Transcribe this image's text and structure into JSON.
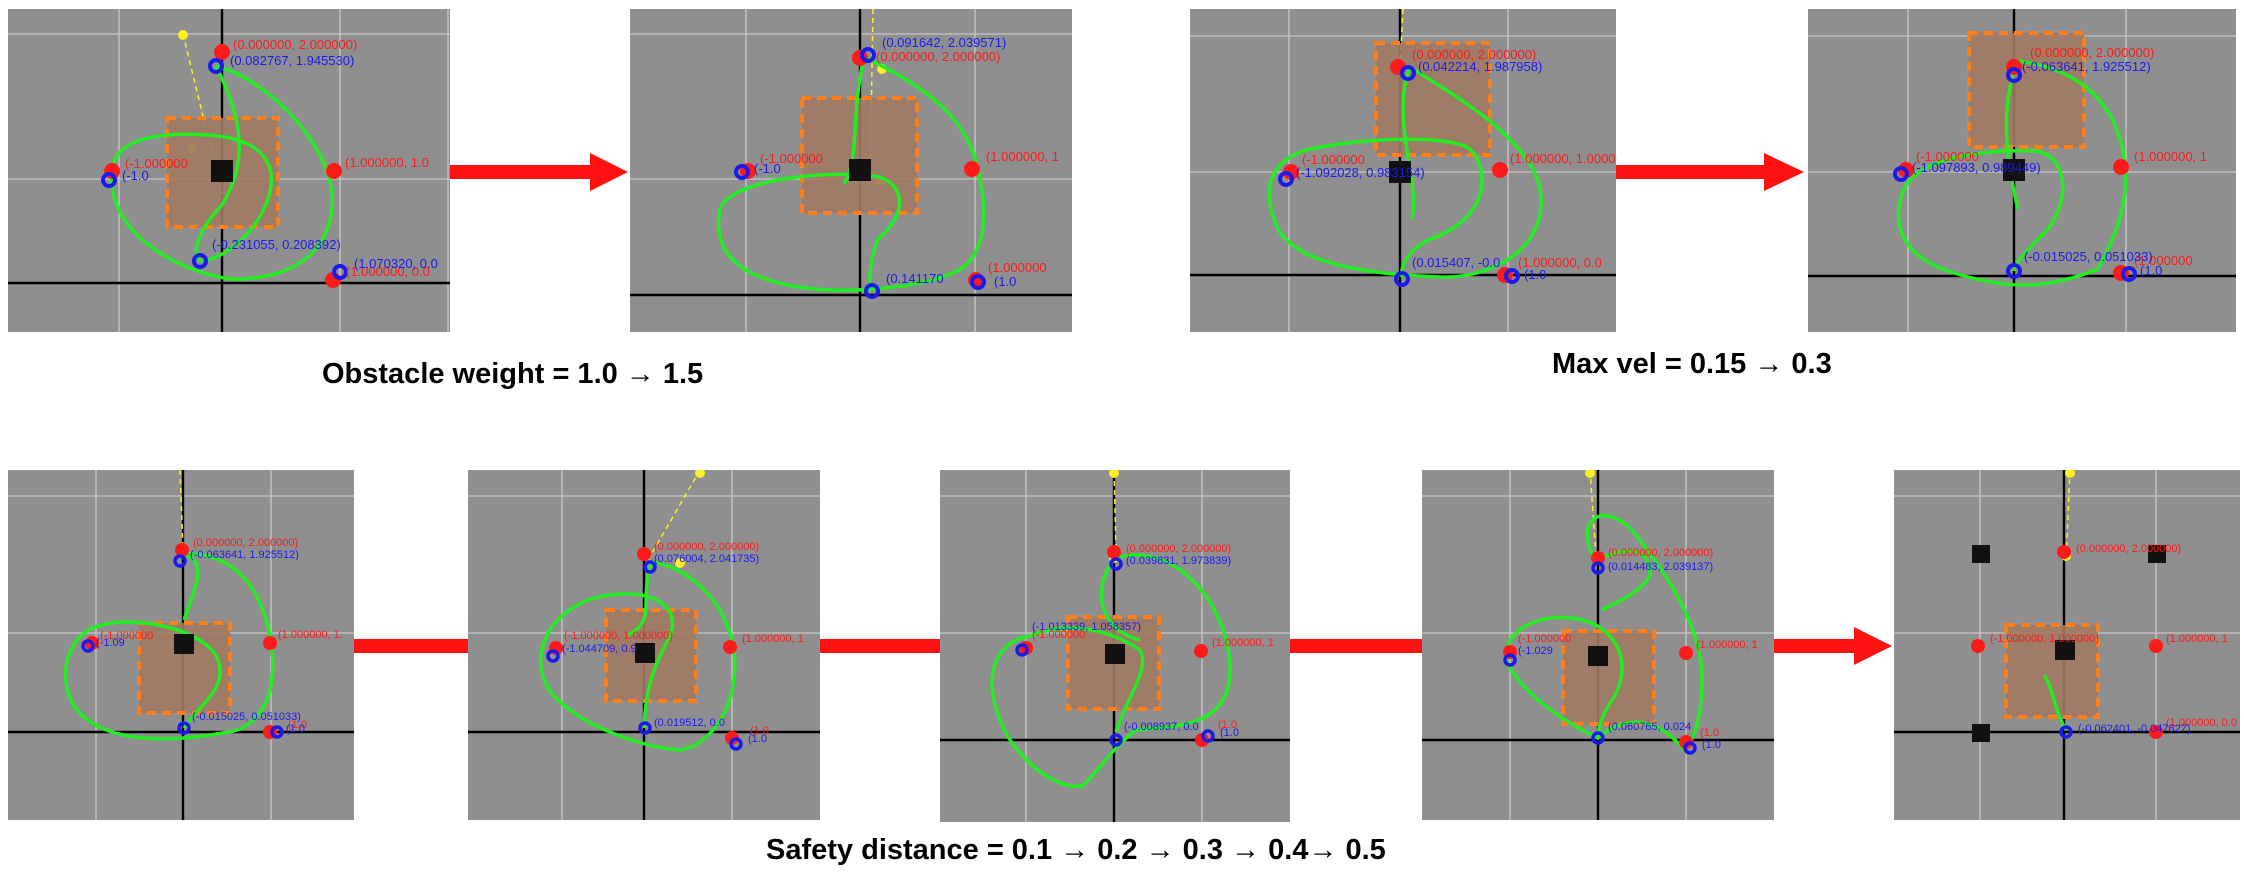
{
  "captions": {
    "obstacle": "Obstacle weight = 1.0 → 1.5",
    "maxvel": "Max vel = 0.15 → 0.3",
    "safety": "Safety distance = 0.1 → 0.2 → 0.3 → 0.4→ 0.5"
  },
  "colors": {
    "background": "#8f8f8f",
    "grid": "#c8c8c8",
    "axis": "#000000",
    "trajectory": "#22ee22",
    "waypoint": "#ff1a1a",
    "robot": "#1a1aee",
    "obstacle_fill": "#a07a63",
    "obstacle_border": "#ff7f1a",
    "center": "#111111",
    "heading": "#ffee22",
    "arrow": "#ff1111"
  },
  "panels": [
    {
      "id": "p1",
      "waypoint_labels": [
        "(0.000000, 2.000000)",
        "(1.000000, 1.0",
        "(-1.000000",
        "(1.000000, 0.0"
      ],
      "robot_labels": [
        "(0.082767, 1.945530)",
        "(-1.0",
        "(-0.231055, 0.208392)",
        "(1.070320, 0.0"
      ]
    },
    {
      "id": "p2",
      "waypoint_labels": [
        "(0.000000, 2.000000)",
        "(1.000000, 1",
        "(-1.000000",
        "(1.000000"
      ],
      "robot_labels": [
        "(0.091642, 2.039571)",
        "(-1.0",
        "(0.141170",
        "(1.0"
      ]
    },
    {
      "id": "p3",
      "waypoint_labels": [
        "(0.000000, 2.000000)",
        "(1.000000, 1.000000)",
        "(-1.000000",
        "(1.000000, 0.0"
      ],
      "robot_labels": [
        "(0.042214, 1.987958)",
        "(-1.092028, 0.983154)",
        "(0.015407, -0.0",
        "(1.0"
      ]
    },
    {
      "id": "p4",
      "waypoint_labels": [
        "(0.000000, 2.000000)",
        "(1.000000, 1",
        "(-1.000000",
        "(1.000000"
      ],
      "robot_labels": [
        "(-0.063641, 1.925512)",
        "(-1.097893, 0.989449)",
        "(-0.015025, 0.051033)",
        "(1.0"
      ]
    },
    {
      "id": "p5",
      "waypoint_labels": [
        "(0.000000, 2.000000)",
        "(1.000000, 1.",
        "(-1.000000",
        "(1.0"
      ],
      "robot_labels": [
        "(-0.063641, 1.925512)",
        "(-1.09",
        "(-0.015025, 0.051033)",
        "(1.0"
      ]
    },
    {
      "id": "p6",
      "waypoint_labels": [
        "(0.000000, 2.000000)",
        "(1.000000, 1",
        "(-1.000000, 1.000000)",
        "(1.0"
      ],
      "robot_labels": [
        "(0.076004, 2.041735)",
        "(-1.044709, 0.9",
        "(0.019512, 0.0",
        "(1.0"
      ]
    },
    {
      "id": "p7",
      "waypoint_labels": [
        "(0.000000, 2.000000)",
        "(1.000000, 1",
        "(-1.000000",
        "(1.0"
      ],
      "robot_labels": [
        "(0.039831, 1.973839)",
        "(-1.013339, 1.058357)",
        "(-0.008937, 0.0",
        "(1.0"
      ]
    },
    {
      "id": "p8",
      "waypoint_labels": [
        "(0.000000, 2.000000)",
        "(1.000000, 1",
        "(-1.000000",
        "(1.0"
      ],
      "robot_labels": [
        "(0.014483, 2.039137)",
        "(-1.029",
        "(0.060765, 0.024",
        "(1.0"
      ]
    },
    {
      "id": "p9",
      "waypoint_labels": [
        "(0.000000, 2.000000)",
        "(1.000000, 1",
        "(-1.000000, 1.000000)",
        "(1.000000, 0.0"
      ],
      "robot_labels": [
        "(-0.062401, -0.047827)"
      ]
    }
  ]
}
